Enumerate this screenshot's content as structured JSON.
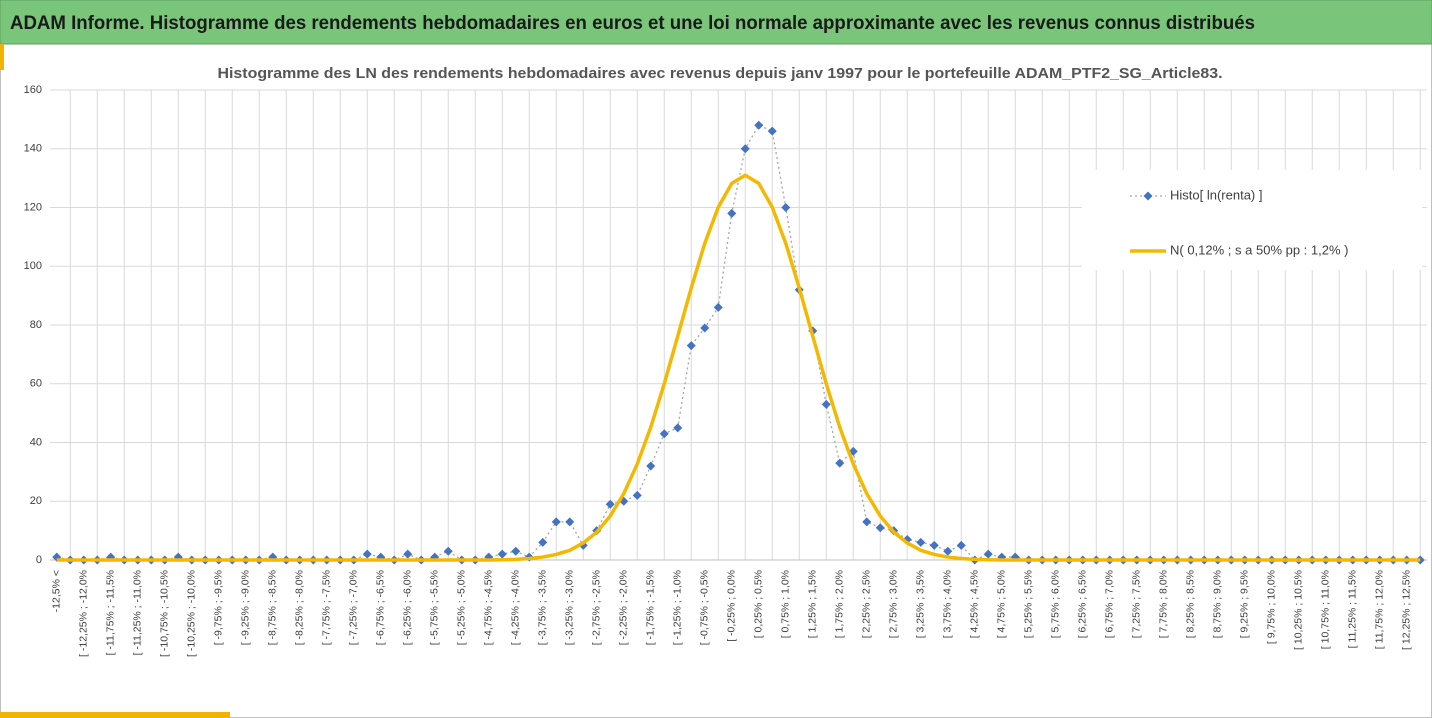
{
  "header": {
    "title": "ADAM Informe. Histogramme des rendements hebdomadaires en euros et une loi normale approximante avec les revenus connus distribués"
  },
  "chart_data": {
    "type": "line",
    "title": "Histogramme des LN des rendements hebdomadaires avec revenus depuis janv 1997 pour le portefeuille ADAM_PTF2_SG_Article83.",
    "categories": [
      "-12,5% <",
      null,
      "[ -12,25% ; -12,0%",
      null,
      "[ -11,75% ; -11,5%",
      null,
      "[ -11,25% ; -11,0%",
      null,
      "[ -10,75% ; -10,5%",
      null,
      "[ -10,25% ; -10,0%",
      null,
      "[ -9,75% ; -9,5%",
      null,
      "[ -9,25% ; -9,0%",
      null,
      "[ -8,75% ; -8,5%",
      null,
      "[ -8,25% ; -8,0%",
      null,
      "[ -7,75% ; -7,5%",
      null,
      "[ -7,25% ; -7,0%",
      null,
      "[ -6,75% ; -6,5%",
      null,
      "[ -6,25% ; -6,0%",
      null,
      "[ -5,75% ; -5,5%",
      null,
      "[ -5,25% ; -5,0%",
      null,
      "[ -4,75% ; -4,5%",
      null,
      "[ -4,25% ; -4,0%",
      null,
      "[ -3,75% ; -3,5%",
      null,
      "[ -3,25% ; -3,0%",
      null,
      "[ -2,75% ; -2,5%",
      null,
      "[ -2,25% ; -2,0%",
      null,
      "[ -1,75% ; -1,5%",
      null,
      "[ -1,25% ; -1,0%",
      null,
      "[ -0,75% ; -0,5%",
      null,
      "[ -0,25% ; 0,0%",
      null,
      "[ 0,25% ; 0,5%",
      null,
      "[ 0,75% ; 1,0%",
      null,
      "[ 1,25% ; 1,5%",
      null,
      "[ 1,75% ; 2,0%",
      null,
      "[ 2,25% ; 2,5%",
      null,
      "[ 2,75% ; 3,0%",
      null,
      "[ 3,25% ; 3,5%",
      null,
      "[ 3,75% ; 4,0%",
      null,
      "[ 4,25% ; 4,5%",
      null,
      "[ 4,75% ; 5,0%",
      null,
      "[ 5,25% ; 5,5%",
      null,
      "[ 5,75% ; 6,0%",
      null,
      "[ 6,25% ; 6,5%",
      null,
      "[ 6,75% ; 7,0%",
      null,
      "[ 7,25% ; 7,5%",
      null,
      "[ 7,75% ; 8,0%",
      null,
      "[ 8,25% ; 8,5%",
      null,
      "[ 8,75% ; 9,0%",
      null,
      "[ 9,25% ; 9,5%",
      null,
      "[ 9,75% ; 10,0%",
      null,
      "[ 10,25% ; 10,5%",
      null,
      "[ 10,75% ; 11,0%",
      null,
      "[ 11,25% ; 11,5%",
      null,
      "[ 11,75% ; 12,0%",
      null,
      "[ 12,25% ; 12,5%",
      null
    ],
    "series": [
      {
        "name": "Histo[ ln(renta) ]",
        "color": "#4472c4",
        "line_color": "#a5a5a5",
        "marker": "diamond",
        "dash": "dotted",
        "values": [
          1,
          0,
          0,
          0,
          1,
          0,
          0,
          0,
          0,
          1,
          0,
          0,
          0,
          0,
          0,
          0,
          1,
          0,
          0,
          0,
          0,
          0,
          0,
          2,
          1,
          0,
          2,
          0,
          1,
          3,
          0,
          0,
          1,
          2,
          3,
          1,
          6,
          13,
          13,
          5,
          10,
          19,
          20,
          22,
          32,
          43,
          45,
          73,
          79,
          86,
          118,
          140,
          148,
          146,
          120,
          92,
          78,
          53,
          33,
          37,
          13,
          11,
          10,
          7,
          6,
          5,
          3,
          5,
          0,
          2,
          1,
          1,
          0,
          0,
          0,
          0,
          0,
          0,
          0,
          0,
          0,
          0,
          0,
          0,
          0,
          0,
          0,
          0,
          0,
          0,
          0,
          0,
          0,
          0,
          0,
          0,
          0,
          0,
          0,
          0,
          0,
          0
        ]
      },
      {
        "name": "N( 0,12% ; s a 50% pp : 1,2% )",
        "color": "#f5b800",
        "marker": "none",
        "dash": "solid",
        "values": [
          0,
          0,
          0,
          0,
          0,
          0,
          0,
          0,
          0,
          0,
          0,
          0,
          0,
          0,
          0,
          0,
          0,
          0,
          0,
          0,
          0,
          0,
          0,
          0,
          0,
          0,
          0,
          0,
          0,
          0,
          0,
          0,
          0,
          0.1,
          0.2,
          0.5,
          1,
          1.9,
          3.3,
          5.8,
          9.5,
          15,
          22.6,
          32.7,
          45.2,
          60,
          76.2,
          92.6,
          107.8,
          120.1,
          128.2,
          131,
          128.2,
          120.1,
          107.8,
          92.6,
          76.2,
          60,
          45.2,
          32.7,
          22.6,
          15,
          9.5,
          5.8,
          3.3,
          1.9,
          1,
          0.5,
          0.2,
          0.1,
          0,
          0,
          0,
          0,
          0,
          0,
          0,
          0,
          0,
          0,
          0,
          0,
          0,
          0,
          0,
          0,
          0,
          0,
          0,
          0,
          0,
          0,
          0,
          0,
          0,
          0,
          0,
          0,
          0,
          0,
          0,
          0
        ]
      }
    ],
    "ylim": [
      0,
      160
    ],
    "yticks": [
      0,
      20,
      40,
      60,
      80,
      100,
      120,
      140,
      160
    ],
    "grid": true,
    "legend": "right"
  }
}
